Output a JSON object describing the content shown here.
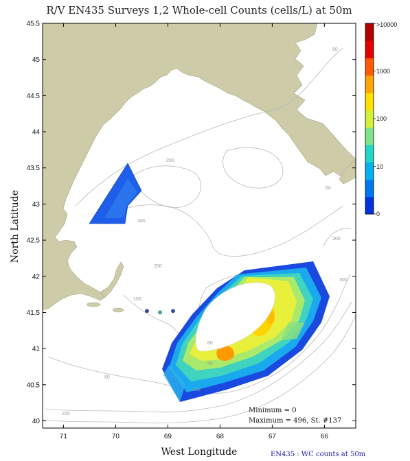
{
  "title": "R/V EN435 Surveys 1,2 Whole-cell Counts (cells/L) at 50m",
  "xlabel": "West Longitude",
  "ylabel": "North Latitude",
  "footer": "EN435 : WC counts at 50m",
  "stats": {
    "minimum": "Minimum = 0",
    "maximum": "Maximum = 496, St. #137"
  },
  "axes": {
    "lon_min": 65.4,
    "lon_max": 71.4,
    "lat_min": 39.9,
    "lat_max": 45.5,
    "lon_ticks": [
      "71",
      "70",
      "69",
      "68",
      "67",
      "66"
    ],
    "lat_ticks": [
      "45.5",
      "45",
      "44.5",
      "44",
      "43.5",
      "43",
      "42.5",
      "42",
      "41.5",
      "41",
      "40.5",
      "40"
    ]
  },
  "colorbar": {
    "labels": [
      ">10000",
      "1000",
      "100",
      "10",
      "0"
    ],
    "colors": [
      "#0033dd",
      "#0077ee",
      "#00b3f0",
      "#22d6c8",
      "#7fe38a",
      "#d6f03a",
      "#ffe000",
      "#ffa500",
      "#ff5a00",
      "#e60000",
      "#b00000"
    ]
  },
  "isobath_labels": [
    "60",
    "200",
    "200",
    "200",
    "100",
    "60",
    "300",
    "60",
    "200",
    "60",
    "60",
    "100",
    "200"
  ],
  "stations": [
    {
      "lon": 69.4,
      "lat": 41.52,
      "color": "#2244cc"
    },
    {
      "lon": 69.15,
      "lat": 41.5,
      "color": "#22c4b0"
    },
    {
      "lon": 68.9,
      "lat": 41.52,
      "color": "#2244cc"
    }
  ],
  "colors": {
    "land": "#cdcba8",
    "water": "#ffffff",
    "isobath": "#b8b8b8",
    "frame": "#000000"
  }
}
